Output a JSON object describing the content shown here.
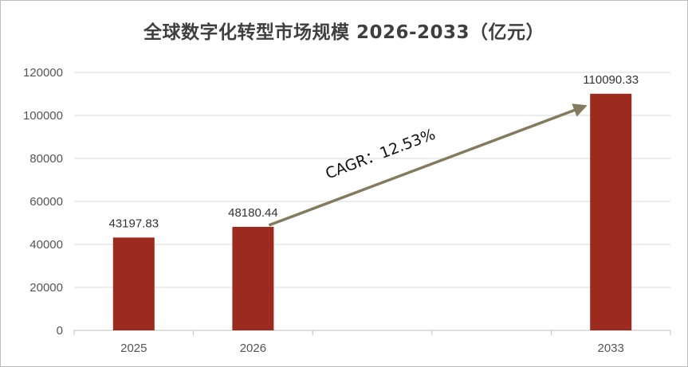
{
  "chart_data": {
    "type": "bar",
    "title": "全球数字化转型市场规模 2026-2033（亿元）",
    "categories": [
      "2025",
      "2026",
      "2033"
    ],
    "values": [
      43197.83,
      48180.44,
      110090.33
    ],
    "value_labels": [
      "43197.83",
      "48180.44",
      "110090.33"
    ],
    "xlabel": "",
    "ylabel": "",
    "ylim": [
      0,
      120000
    ],
    "yticks": [
      "0",
      "20000",
      "40000",
      "60000",
      "80000",
      "100000",
      "120000"
    ],
    "grid": true,
    "legend": "none",
    "annotation": {
      "text": "CAGR：12.53%",
      "type": "arrow",
      "from_category": "2026",
      "to_category": "2033"
    },
    "colors": {
      "bar": "#9b2a1f",
      "arrow": "#857a5e",
      "grid": "#d9d9d9",
      "axis": "#bfbfbf"
    }
  }
}
